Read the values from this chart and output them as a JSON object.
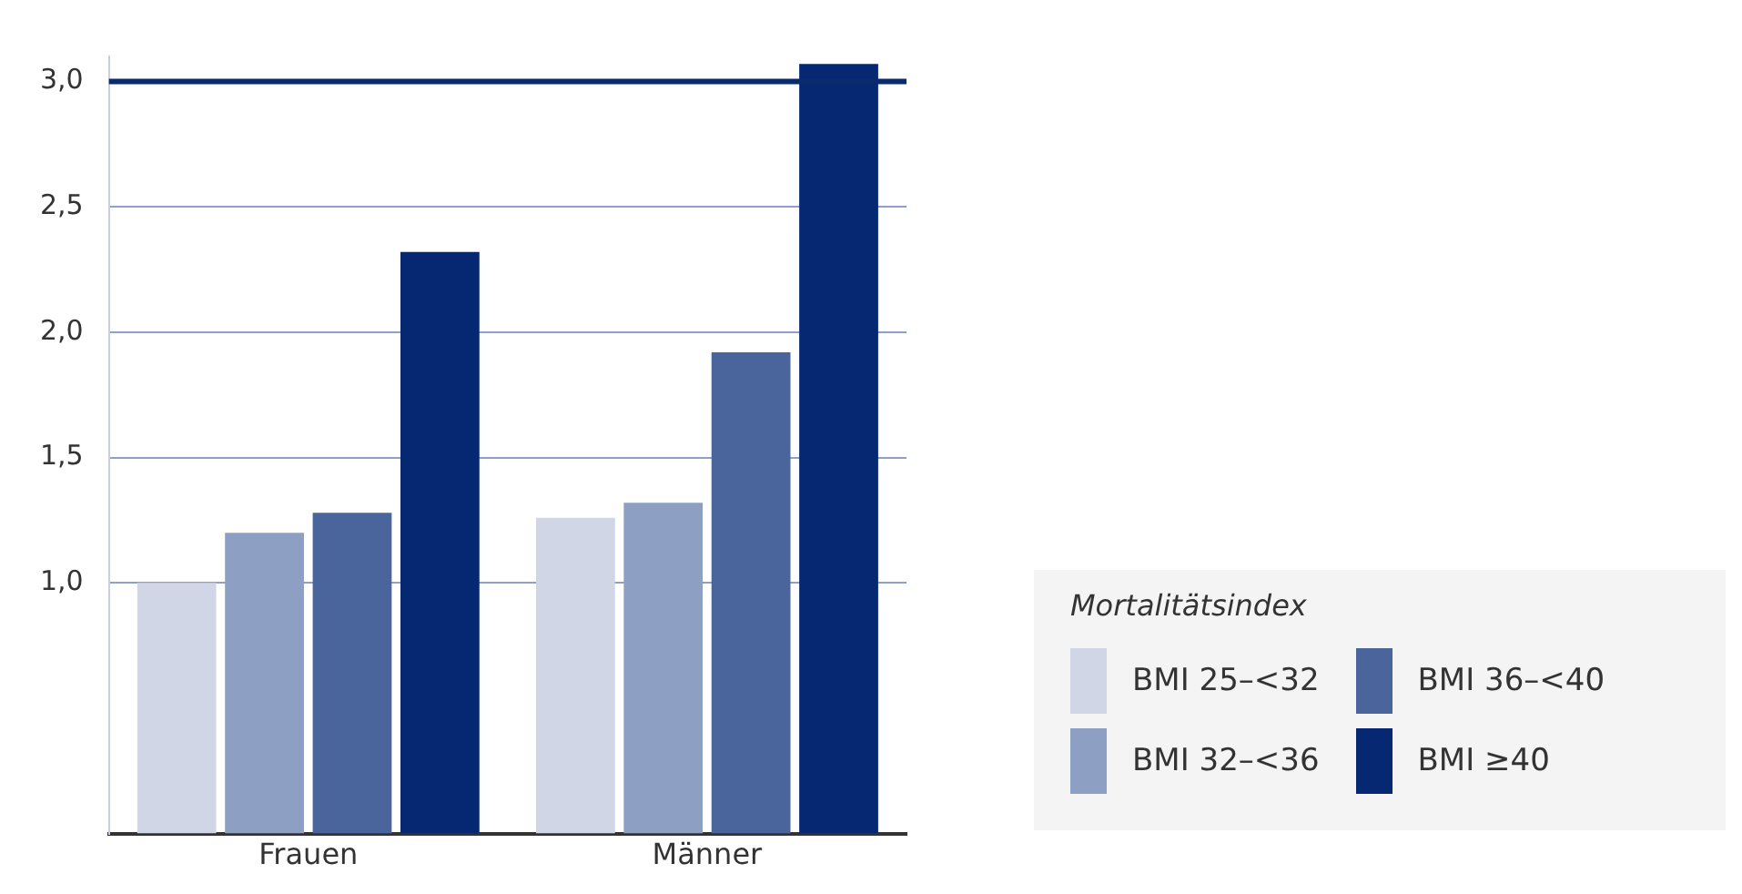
{
  "chart_data": {
    "type": "bar",
    "categories": [
      "Frauen",
      "Männer"
    ],
    "series": [
      {
        "name": "BMI 25–<32",
        "color": "#d0d6e6",
        "values": [
          1.0,
          1.26
        ]
      },
      {
        "name": "BMI 32–<36",
        "color": "#8e9fc4",
        "values": [
          1.2,
          1.32
        ]
      },
      {
        "name": "BMI 36–<40",
        "color": "#4a649c",
        "values": [
          1.28,
          1.92
        ]
      },
      {
        "name": "BMI ≥40",
        "color": "#062872",
        "values": [
          2.32,
          3.07
        ]
      }
    ],
    "ylim": [
      0,
      3.1
    ],
    "ref_lines": [
      {
        "axis": "y",
        "value": 3,
        "color": "#0a2a6e"
      }
    ],
    "yticks": [
      {
        "value": 1,
        "label": "1,0"
      },
      {
        "value": 1.5,
        "label": "1,5"
      },
      {
        "value": 2,
        "label": "2,0"
      },
      {
        "value": 2.5,
        "label": "2,5"
      },
      {
        "value": 3,
        "label": "3,0"
      }
    ],
    "grid": "y",
    "legend": "bottom right",
    "legend_title": "Mortalitätsindex"
  }
}
